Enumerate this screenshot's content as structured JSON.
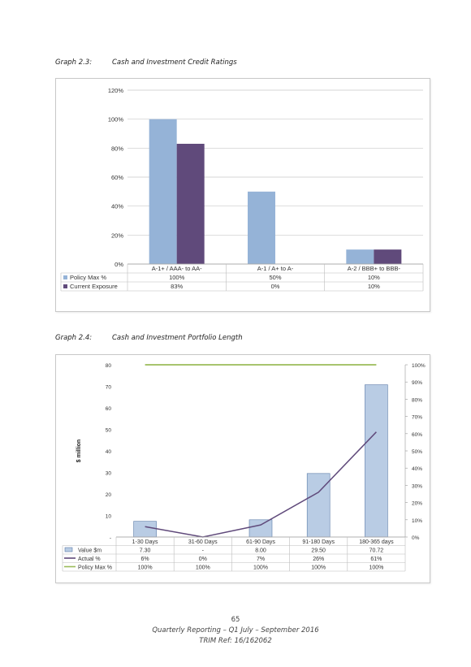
{
  "graph1": {
    "number": "Graph 2.3:",
    "title": "Cash and Investment Credit Ratings",
    "colors": {
      "policy": "#95b3d7",
      "current": "#604a7b"
    },
    "chart_data": {
      "type": "bar",
      "categories": [
        "A-1+ / AAA- to AA-",
        "A-1 / A+ to A-",
        "A-2 / BBB+ to BBB-"
      ],
      "series": [
        {
          "name": "Policy Max %",
          "values": [
            100,
            50,
            10
          ]
        },
        {
          "name": "Current Exposure",
          "values": [
            83,
            0,
            10
          ]
        }
      ],
      "ylim": [
        0,
        120
      ],
      "yticks": [
        "0%",
        "20%",
        "40%",
        "60%",
        "80%",
        "100%",
        "120%"
      ],
      "table": [
        [
          "100%",
          "50%",
          "10%"
        ],
        [
          "83%",
          "0%",
          "10%"
        ]
      ],
      "grid": true,
      "legend": "data table"
    }
  },
  "graph2": {
    "number": "Graph 2.4:",
    "title": "Cash and Investment Portfolio Length",
    "colors": {
      "bar": "#b9cce4",
      "actual": "#604a7b",
      "policy": "#9bbb59"
    },
    "chart_data": {
      "type": "bar",
      "categories": [
        "1-30 Days",
        "31-60 Days",
        "61-90 Days",
        "91-180 Days",
        "180-365 days"
      ],
      "series": [
        {
          "name": "Value $m",
          "values": [
            7.3,
            0,
            8.0,
            29.5,
            70.72
          ],
          "axis": "left"
        },
        {
          "name": "Actual %",
          "values": [
            6,
            0,
            7,
            26,
            61
          ],
          "axis": "right",
          "type": "line"
        },
        {
          "name": "Policy Max %",
          "values": [
            100,
            100,
            100,
            100,
            100
          ],
          "axis": "right",
          "type": "line"
        }
      ],
      "ylabel": "$ million",
      "ylim": [
        0,
        80
      ],
      "y2lim": [
        0,
        100
      ],
      "yticks": [
        "-",
        "10",
        "20",
        "30",
        "40",
        "50",
        "60",
        "70",
        "80"
      ],
      "y2ticks": [
        "0%",
        "10%",
        "20%",
        "30%",
        "40%",
        "50%",
        "60%",
        "70%",
        "80%",
        "90%",
        "100%"
      ],
      "table": [
        [
          "7.30",
          "-",
          "8.00",
          "29.50",
          "70.72"
        ],
        [
          "6%",
          "0%",
          "7%",
          "26%",
          "61%"
        ],
        [
          "100%",
          "100%",
          "100%",
          "100%",
          "100%"
        ]
      ],
      "grid": false,
      "legend": "data table"
    }
  },
  "footer": {
    "page": "65",
    "line1": "Quarterly Reporting – Q1 July – September 2016",
    "line2": "TRIM Ref: 16/162062"
  }
}
